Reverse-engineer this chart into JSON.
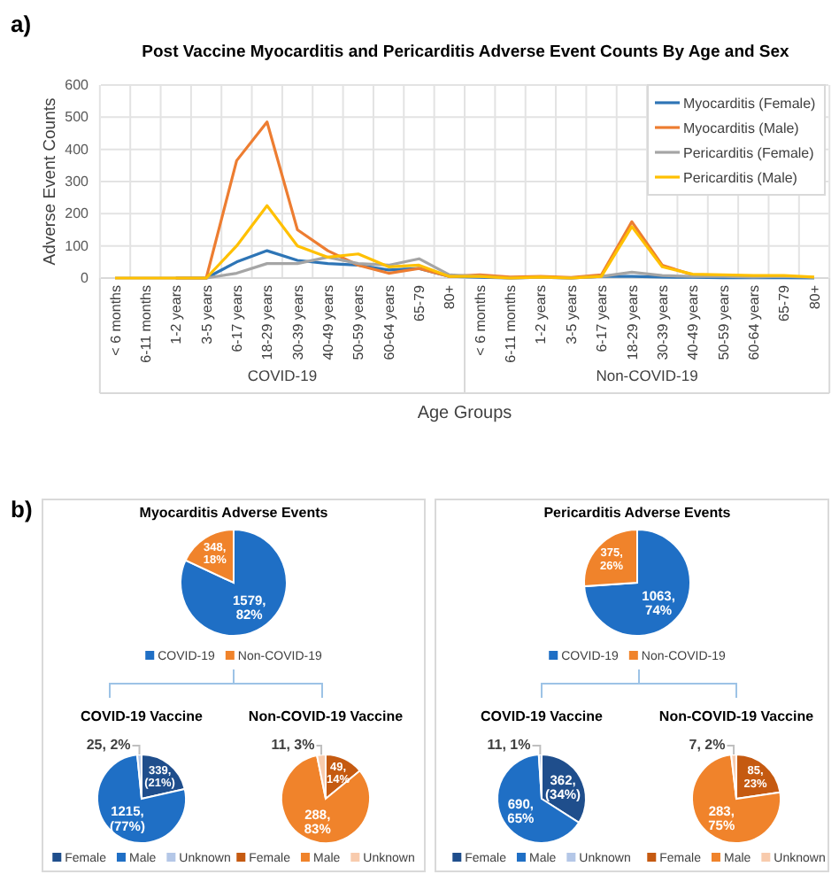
{
  "chart_data": [
    {
      "type": "line",
      "title": "Post Vaccine Myocarditis and Pericarditis Adverse Event Counts By Age and Sex",
      "xlabel": "Age Groups",
      "ylabel": "Adverse Event Counts",
      "annotations": [
        "a)",
        "COVID-19",
        "Non-COVID-19"
      ],
      "categories": [
        "< 6 months",
        "6-11 months",
        "1-2 years",
        "3-5 years",
        "6-17 years",
        "18-29 years",
        "30-39 years",
        "40-49 years",
        "50-59 years",
        "60-64 years",
        "65-79",
        "80+",
        "< 6 months",
        "6-11 months",
        "1-2 years",
        "3-5 years",
        "6-17 years",
        "18-29 years",
        "30-39 years",
        "40-49 years",
        "50-59 years",
        "60-64 years",
        "65-79",
        "80+"
      ],
      "series": [
        {
          "name": "Myocarditis (Female)",
          "color": "#2e75b6",
          "values": [
            null,
            null,
            0,
            0,
            50,
            85,
            55,
            45,
            40,
            25,
            30,
            5,
            2,
            0,
            2,
            0,
            5,
            5,
            3,
            2,
            1,
            1,
            1,
            0
          ]
        },
        {
          "name": "Myocarditis (Male)",
          "color": "#ed7d31",
          "values": [
            null,
            null,
            0,
            0,
            365,
            485,
            150,
            85,
            40,
            15,
            30,
            5,
            10,
            3,
            5,
            2,
            10,
            175,
            40,
            10,
            8,
            null,
            null,
            null
          ]
        },
        {
          "name": "Pericarditis (Female)",
          "color": "#a5a5a5",
          "values": [
            0,
            0,
            0,
            0,
            15,
            45,
            45,
            65,
            45,
            40,
            60,
            10,
            5,
            0,
            2,
            0,
            5,
            18,
            8,
            5,
            5,
            3,
            5,
            2
          ]
        },
        {
          "name": "Pericarditis (Male)",
          "color": "#ffc000",
          "values": [
            0,
            0,
            0,
            0,
            100,
            225,
            100,
            65,
            75,
            35,
            40,
            5,
            5,
            0,
            3,
            0,
            5,
            160,
            35,
            12,
            10,
            8,
            8,
            3
          ]
        }
      ],
      "ylim": [
        0,
        600
      ],
      "yticks": [
        0,
        100,
        200,
        300,
        400,
        500,
        600
      ],
      "grid": true,
      "legend": "top right"
    },
    {
      "type": "pie",
      "title": "Myocarditis Adverse Events",
      "annotations": [
        "b)"
      ],
      "categories": [
        "COVID-19",
        "Non-COVID-19"
      ],
      "values": [
        1579,
        348
      ],
      "colors": [
        "#1f6fc5",
        "#f0832b"
      ],
      "value_labels": [
        "1579,\n82%",
        "348,\n18%"
      ],
      "legend": "bottom"
    },
    {
      "type": "pie",
      "title": "COVID-19 Vaccine",
      "categories": [
        "Female",
        "Male",
        "Unknown"
      ],
      "values": [
        339,
        1215,
        25
      ],
      "colors": [
        "#1f4e8c",
        "#1f6fc5",
        "#b4c7e7"
      ],
      "value_labels": [
        "339,\n(21%)",
        "1215,\n(77%)",
        "25, 2%"
      ],
      "legend": "bottom"
    },
    {
      "type": "pie",
      "title": "Non-COVID-19 Vaccine",
      "categories": [
        "Female",
        "Male",
        "Unknown"
      ],
      "values": [
        49,
        288,
        11
      ],
      "colors": [
        "#c55a11",
        "#f0832b",
        "#f8cbad"
      ],
      "value_labels": [
        "49,\n14%",
        "288,\n83%",
        "11, 3%"
      ],
      "legend": "bottom"
    },
    {
      "type": "pie",
      "title": "Pericarditis Adverse Events",
      "categories": [
        "COVID-19",
        "Non-COVID-19"
      ],
      "values": [
        1063,
        375
      ],
      "colors": [
        "#1f6fc5",
        "#f0832b"
      ],
      "value_labels": [
        "1063,\n74%",
        "375,\n26%"
      ],
      "legend": "bottom"
    },
    {
      "type": "pie",
      "title": "COVID-19 Vaccine",
      "categories": [
        "Female",
        "Male",
        "Unknown"
      ],
      "values": [
        362,
        690,
        11
      ],
      "colors": [
        "#1f4e8c",
        "#1f6fc5",
        "#b4c7e7"
      ],
      "value_labels": [
        "362,\n(34%)",
        "690,\n65%",
        "11, 1%"
      ],
      "legend": "bottom"
    },
    {
      "type": "pie",
      "title": "Non-COVID-19 Vaccine",
      "categories": [
        "Female",
        "Male",
        "Unknown"
      ],
      "values": [
        85,
        283,
        7
      ],
      "colors": [
        "#c55a11",
        "#f0832b",
        "#f8cbad"
      ],
      "value_labels": [
        "85,\n23%",
        "283,\n75%",
        "7, 2%"
      ],
      "legend": "bottom"
    }
  ]
}
